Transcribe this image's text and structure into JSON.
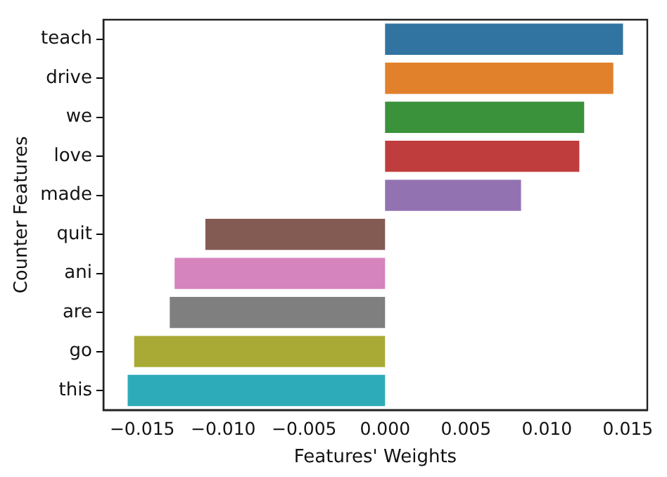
{
  "chart_data": {
    "type": "bar",
    "orientation": "horizontal",
    "xlabel": "Features' Weights",
    "ylabel": "Counter Features",
    "categories": [
      "teach",
      "drive",
      "we",
      "love",
      "made",
      "quit",
      "ani",
      "are",
      "go",
      "this"
    ],
    "values": [
      0.0147,
      0.0141,
      0.0123,
      0.012,
      0.0084,
      -0.0111,
      -0.013,
      -0.0133,
      -0.0155,
      -0.0159
    ],
    "colors": [
      "#3274a1",
      "#e1812c",
      "#3a923a",
      "#c03d3e",
      "#9372b2",
      "#845b53",
      "#d684bd",
      "#7f7f7f",
      "#a9aa35",
      "#2eabb8"
    ],
    "xlim": [
      -0.0174,
      0.0162
    ],
    "xticks": [
      {
        "value": -0.015,
        "label": "−0.015"
      },
      {
        "value": -0.01,
        "label": "−0.010"
      },
      {
        "value": -0.005,
        "label": "−0.005"
      },
      {
        "value": 0,
        "label": "0.000"
      },
      {
        "value": 0.005,
        "label": "0.005"
      },
      {
        "value": 0.01,
        "label": "0.010"
      },
      {
        "value": 0.015,
        "label": "0.015"
      }
    ],
    "grid": false,
    "legend": false
  }
}
